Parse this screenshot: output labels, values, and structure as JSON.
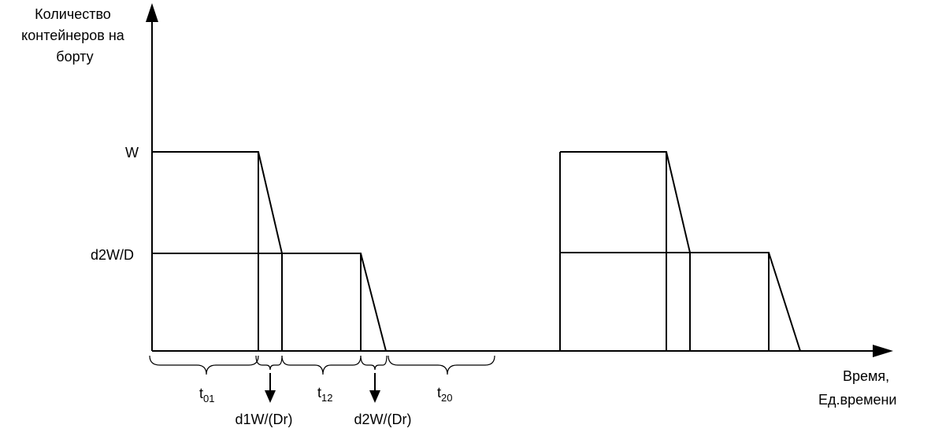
{
  "axes": {
    "y_label_lines": [
      "Количество",
      "контейнеров на",
      "борту"
    ],
    "x_label_lines": [
      "Время,",
      "Ед.времени"
    ]
  },
  "levels": {
    "top": "W",
    "middle": "d2W/D"
  },
  "intervals": {
    "t01": {
      "base": "t",
      "sub": "01"
    },
    "t12": {
      "base": "t",
      "sub": "12"
    },
    "t20": {
      "base": "t",
      "sub": "20"
    }
  },
  "unload_rates": {
    "first": "d1W/(Dr)",
    "second": "d2W/(Dr)"
  },
  "colors": {
    "line": "#000000",
    "background": "#ffffff"
  }
}
